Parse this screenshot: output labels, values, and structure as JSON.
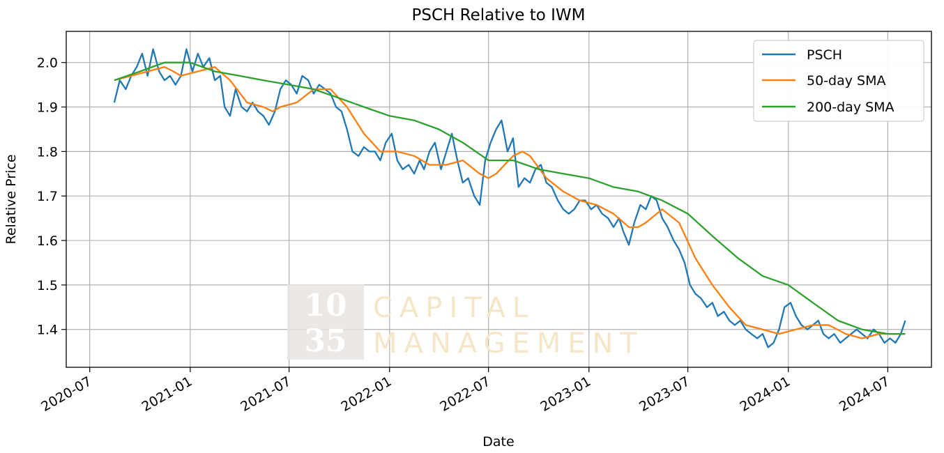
{
  "chart_data": {
    "type": "line",
    "title": "PSCH Relative to IWM",
    "xlabel": "Date",
    "ylabel": "Relative Price",
    "xlim": [
      "2020-05-19",
      "2024-09-19"
    ],
    "ylim": [
      1.315,
      2.07
    ],
    "x_ticks": [
      "2020-07",
      "2021-01",
      "2021-07",
      "2022-01",
      "2022-07",
      "2023-01",
      "2023-07",
      "2024-01",
      "2024-07"
    ],
    "y_ticks": [
      1.4,
      1.5,
      1.6,
      1.7,
      1.8,
      1.9,
      2.0
    ],
    "grid": true,
    "legend_position": "top-right",
    "watermark": {
      "number_top": "10",
      "number_bottom": "35",
      "word_top": "CAPITAL",
      "word_bottom": "MANAGEMENT"
    },
    "series": [
      {
        "name": "PSCH",
        "color": "#1f77b4",
        "points": [
          [
            "2020-08-15",
            1.91
          ],
          [
            "2020-08-25",
            1.96
          ],
          [
            "2020-09-05",
            1.94
          ],
          [
            "2020-09-15",
            1.97
          ],
          [
            "2020-09-25",
            1.99
          ],
          [
            "2020-10-05",
            2.02
          ],
          [
            "2020-10-15",
            1.97
          ],
          [
            "2020-10-25",
            2.03
          ],
          [
            "2020-11-05",
            1.98
          ],
          [
            "2020-11-15",
            1.96
          ],
          [
            "2020-11-25",
            1.97
          ],
          [
            "2020-12-05",
            1.95
          ],
          [
            "2020-12-15",
            1.97
          ],
          [
            "2020-12-25",
            2.03
          ],
          [
            "2021-01-05",
            1.98
          ],
          [
            "2021-01-15",
            2.02
          ],
          [
            "2021-01-25",
            1.99
          ],
          [
            "2021-02-05",
            2.01
          ],
          [
            "2021-02-15",
            1.96
          ],
          [
            "2021-02-25",
            1.97
          ],
          [
            "2021-03-05",
            1.9
          ],
          [
            "2021-03-15",
            1.88
          ],
          [
            "2021-03-25",
            1.94
          ],
          [
            "2021-04-05",
            1.9
          ],
          [
            "2021-04-15",
            1.89
          ],
          [
            "2021-04-25",
            1.91
          ],
          [
            "2021-05-05",
            1.89
          ],
          [
            "2021-05-15",
            1.88
          ],
          [
            "2021-05-25",
            1.86
          ],
          [
            "2021-06-05",
            1.89
          ],
          [
            "2021-06-15",
            1.94
          ],
          [
            "2021-06-25",
            1.96
          ],
          [
            "2021-07-05",
            1.95
          ],
          [
            "2021-07-15",
            1.93
          ],
          [
            "2021-07-25",
            1.97
          ],
          [
            "2021-08-05",
            1.96
          ],
          [
            "2021-08-15",
            1.93
          ],
          [
            "2021-08-25",
            1.95
          ],
          [
            "2021-09-05",
            1.94
          ],
          [
            "2021-09-15",
            1.93
          ],
          [
            "2021-09-25",
            1.9
          ],
          [
            "2021-10-05",
            1.89
          ],
          [
            "2021-10-15",
            1.85
          ],
          [
            "2021-10-25",
            1.8
          ],
          [
            "2021-11-05",
            1.79
          ],
          [
            "2021-11-15",
            1.81
          ],
          [
            "2021-11-25",
            1.8
          ],
          [
            "2021-12-05",
            1.8
          ],
          [
            "2021-12-15",
            1.78
          ],
          [
            "2021-12-25",
            1.82
          ],
          [
            "2022-01-05",
            1.84
          ],
          [
            "2022-01-15",
            1.78
          ],
          [
            "2022-01-25",
            1.76
          ],
          [
            "2022-02-05",
            1.77
          ],
          [
            "2022-02-15",
            1.75
          ],
          [
            "2022-02-25",
            1.78
          ],
          [
            "2022-03-05",
            1.76
          ],
          [
            "2022-03-15",
            1.8
          ],
          [
            "2022-03-25",
            1.82
          ],
          [
            "2022-04-05",
            1.76
          ],
          [
            "2022-04-15",
            1.8
          ],
          [
            "2022-04-25",
            1.84
          ],
          [
            "2022-05-05",
            1.78
          ],
          [
            "2022-05-15",
            1.73
          ],
          [
            "2022-05-25",
            1.74
          ],
          [
            "2022-06-05",
            1.7
          ],
          [
            "2022-06-15",
            1.68
          ],
          [
            "2022-06-25",
            1.78
          ],
          [
            "2022-07-05",
            1.82
          ],
          [
            "2022-07-15",
            1.85
          ],
          [
            "2022-07-25",
            1.87
          ],
          [
            "2022-08-05",
            1.8
          ],
          [
            "2022-08-15",
            1.83
          ],
          [
            "2022-08-25",
            1.72
          ],
          [
            "2022-09-05",
            1.74
          ],
          [
            "2022-09-15",
            1.73
          ],
          [
            "2022-09-25",
            1.76
          ],
          [
            "2022-10-05",
            1.77
          ],
          [
            "2022-10-15",
            1.73
          ],
          [
            "2022-10-25",
            1.72
          ],
          [
            "2022-11-05",
            1.69
          ],
          [
            "2022-11-15",
            1.67
          ],
          [
            "2022-11-25",
            1.66
          ],
          [
            "2022-12-05",
            1.67
          ],
          [
            "2022-12-15",
            1.69
          ],
          [
            "2022-12-25",
            1.69
          ],
          [
            "2023-01-05",
            1.67
          ],
          [
            "2023-01-15",
            1.68
          ],
          [
            "2023-01-25",
            1.66
          ],
          [
            "2023-02-05",
            1.65
          ],
          [
            "2023-02-15",
            1.63
          ],
          [
            "2023-02-25",
            1.65
          ],
          [
            "2023-03-05",
            1.62
          ],
          [
            "2023-03-15",
            1.59
          ],
          [
            "2023-03-25",
            1.64
          ],
          [
            "2023-04-05",
            1.68
          ],
          [
            "2023-04-15",
            1.67
          ],
          [
            "2023-04-25",
            1.7
          ],
          [
            "2023-05-05",
            1.69
          ],
          [
            "2023-05-15",
            1.65
          ],
          [
            "2023-05-25",
            1.63
          ],
          [
            "2023-06-05",
            1.6
          ],
          [
            "2023-06-15",
            1.58
          ],
          [
            "2023-06-25",
            1.55
          ],
          [
            "2023-07-05",
            1.5
          ],
          [
            "2023-07-15",
            1.48
          ],
          [
            "2023-07-25",
            1.47
          ],
          [
            "2023-08-05",
            1.45
          ],
          [
            "2023-08-15",
            1.46
          ],
          [
            "2023-08-25",
            1.43
          ],
          [
            "2023-09-05",
            1.44
          ],
          [
            "2023-09-15",
            1.42
          ],
          [
            "2023-09-25",
            1.41
          ],
          [
            "2023-10-05",
            1.42
          ],
          [
            "2023-10-15",
            1.4
          ],
          [
            "2023-10-25",
            1.39
          ],
          [
            "2023-11-05",
            1.38
          ],
          [
            "2023-11-15",
            1.39
          ],
          [
            "2023-11-25",
            1.36
          ],
          [
            "2023-12-05",
            1.37
          ],
          [
            "2023-12-15",
            1.4
          ],
          [
            "2023-12-25",
            1.45
          ],
          [
            "2024-01-05",
            1.46
          ],
          [
            "2024-01-15",
            1.43
          ],
          [
            "2024-01-25",
            1.41
          ],
          [
            "2024-02-05",
            1.4
          ],
          [
            "2024-02-15",
            1.41
          ],
          [
            "2024-02-25",
            1.42
          ],
          [
            "2024-03-05",
            1.39
          ],
          [
            "2024-03-15",
            1.38
          ],
          [
            "2024-03-25",
            1.39
          ],
          [
            "2024-04-05",
            1.37
          ],
          [
            "2024-04-15",
            1.38
          ],
          [
            "2024-04-25",
            1.39
          ],
          [
            "2024-05-05",
            1.4
          ],
          [
            "2024-05-15",
            1.39
          ],
          [
            "2024-05-25",
            1.38
          ],
          [
            "2024-06-05",
            1.4
          ],
          [
            "2024-06-15",
            1.39
          ],
          [
            "2024-06-25",
            1.37
          ],
          [
            "2024-07-05",
            1.38
          ],
          [
            "2024-07-15",
            1.37
          ],
          [
            "2024-07-25",
            1.39
          ],
          [
            "2024-08-02",
            1.42
          ]
        ]
      },
      {
        "name": "50-day SMA",
        "color": "#ff7f0e",
        "points": [
          [
            "2020-08-15",
            1.96
          ],
          [
            "2020-09-15",
            1.97
          ],
          [
            "2020-10-15",
            1.98
          ],
          [
            "2020-11-15",
            1.99
          ],
          [
            "2020-12-01",
            1.98
          ],
          [
            "2020-12-15",
            1.97
          ],
          [
            "2021-01-15",
            1.98
          ],
          [
            "2021-02-15",
            1.99
          ],
          [
            "2021-03-15",
            1.96
          ],
          [
            "2021-04-15",
            1.91
          ],
          [
            "2021-05-15",
            1.9
          ],
          [
            "2021-06-01",
            1.89
          ],
          [
            "2021-06-15",
            1.9
          ],
          [
            "2021-07-15",
            1.91
          ],
          [
            "2021-08-15",
            1.94
          ],
          [
            "2021-09-15",
            1.94
          ],
          [
            "2021-10-15",
            1.9
          ],
          [
            "2021-11-15",
            1.84
          ],
          [
            "2021-12-15",
            1.8
          ],
          [
            "2022-01-15",
            1.8
          ],
          [
            "2022-02-15",
            1.79
          ],
          [
            "2022-03-15",
            1.77
          ],
          [
            "2022-04-15",
            1.77
          ],
          [
            "2022-05-15",
            1.78
          ],
          [
            "2022-06-15",
            1.75
          ],
          [
            "2022-07-01",
            1.74
          ],
          [
            "2022-07-15",
            1.75
          ],
          [
            "2022-08-15",
            1.79
          ],
          [
            "2022-09-01",
            1.8
          ],
          [
            "2022-09-15",
            1.79
          ],
          [
            "2022-10-15",
            1.74
          ],
          [
            "2022-11-15",
            1.71
          ],
          [
            "2022-12-15",
            1.69
          ],
          [
            "2023-01-15",
            1.68
          ],
          [
            "2023-02-15",
            1.66
          ],
          [
            "2023-03-15",
            1.63
          ],
          [
            "2023-04-01",
            1.63
          ],
          [
            "2023-04-15",
            1.64
          ],
          [
            "2023-05-15",
            1.67
          ],
          [
            "2023-06-15",
            1.64
          ],
          [
            "2023-07-15",
            1.56
          ],
          [
            "2023-08-15",
            1.5
          ],
          [
            "2023-09-15",
            1.45
          ],
          [
            "2023-10-15",
            1.41
          ],
          [
            "2023-11-15",
            1.4
          ],
          [
            "2023-12-15",
            1.39
          ],
          [
            "2024-01-15",
            1.4
          ],
          [
            "2024-02-15",
            1.41
          ],
          [
            "2024-03-15",
            1.41
          ],
          [
            "2024-04-15",
            1.39
          ],
          [
            "2024-05-15",
            1.38
          ],
          [
            "2024-06-15",
            1.39
          ],
          [
            "2024-07-15",
            1.39
          ],
          [
            "2024-08-02",
            1.39
          ]
        ]
      },
      {
        "name": "200-day SMA",
        "color": "#2ca02c",
        "points": [
          [
            "2020-08-15",
            1.96
          ],
          [
            "2020-10-01",
            1.98
          ],
          [
            "2020-11-15",
            2.0
          ],
          [
            "2021-01-01",
            2.0
          ],
          [
            "2021-02-15",
            1.98
          ],
          [
            "2021-04-01",
            1.97
          ],
          [
            "2021-05-15",
            1.96
          ],
          [
            "2021-07-01",
            1.95
          ],
          [
            "2021-08-15",
            1.94
          ],
          [
            "2021-10-01",
            1.92
          ],
          [
            "2021-11-15",
            1.9
          ],
          [
            "2022-01-01",
            1.88
          ],
          [
            "2022-02-15",
            1.87
          ],
          [
            "2022-04-01",
            1.85
          ],
          [
            "2022-05-15",
            1.82
          ],
          [
            "2022-07-01",
            1.78
          ],
          [
            "2022-08-15",
            1.78
          ],
          [
            "2022-10-01",
            1.76
          ],
          [
            "2022-11-15",
            1.75
          ],
          [
            "2023-01-01",
            1.74
          ],
          [
            "2023-02-15",
            1.72
          ],
          [
            "2023-04-01",
            1.71
          ],
          [
            "2023-05-15",
            1.69
          ],
          [
            "2023-07-01",
            1.66
          ],
          [
            "2023-08-15",
            1.61
          ],
          [
            "2023-10-01",
            1.56
          ],
          [
            "2023-11-15",
            1.52
          ],
          [
            "2024-01-01",
            1.5
          ],
          [
            "2024-02-15",
            1.46
          ],
          [
            "2024-04-01",
            1.42
          ],
          [
            "2024-05-15",
            1.4
          ],
          [
            "2024-07-01",
            1.39
          ],
          [
            "2024-08-02",
            1.39
          ]
        ]
      }
    ]
  }
}
